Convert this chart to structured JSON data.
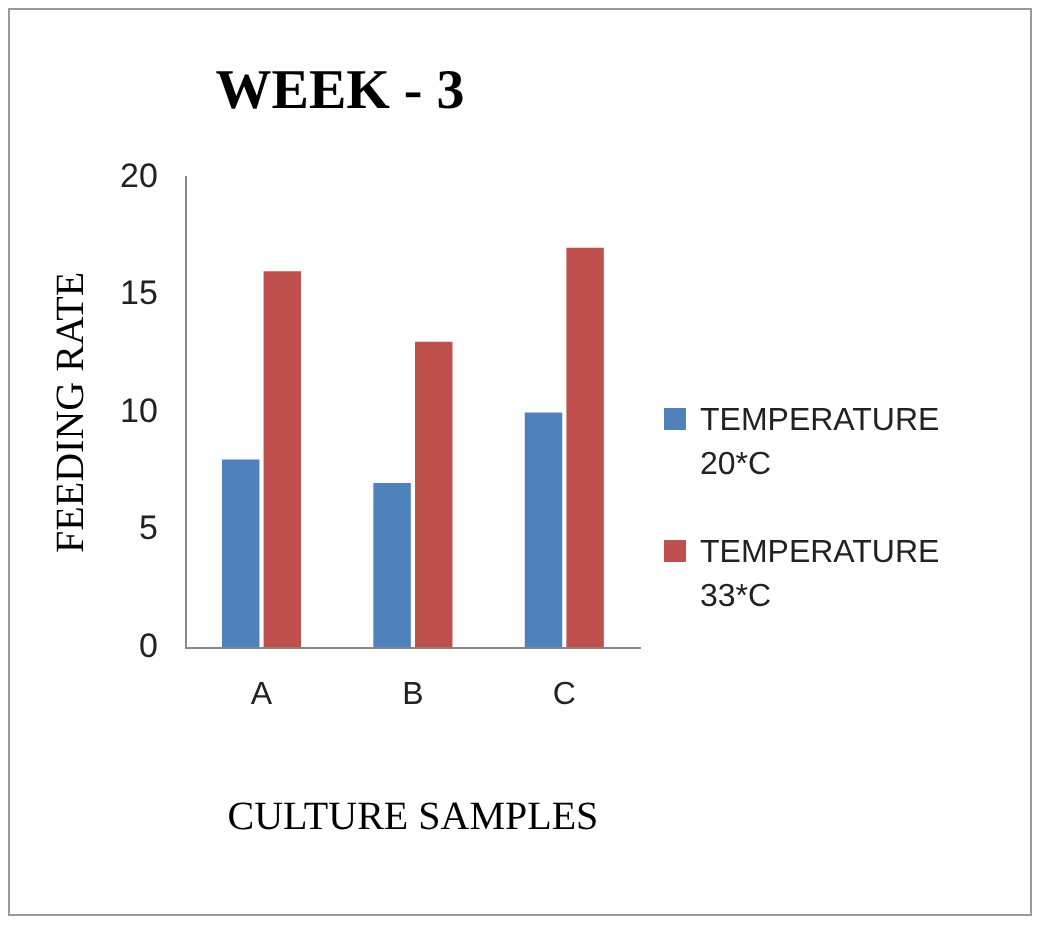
{
  "chart_data": {
    "type": "bar",
    "title": "WEEK - 3",
    "xlabel": "CULTURE SAMPLES",
    "ylabel": "FEEDING RATE",
    "categories": [
      "A",
      "B",
      "C"
    ],
    "series": [
      {
        "name": "TEMPERATURE 20*C",
        "color": "#4f81bd",
        "values": [
          8,
          7,
          10
        ]
      },
      {
        "name": "TEMPERATURE 33*C",
        "color": "#c0504d",
        "values": [
          16,
          13,
          17
        ]
      }
    ],
    "ylim": [
      0,
      20
    ],
    "yticks": [
      0,
      5,
      10,
      15,
      20
    ],
    "grid": false,
    "legend": "right"
  }
}
